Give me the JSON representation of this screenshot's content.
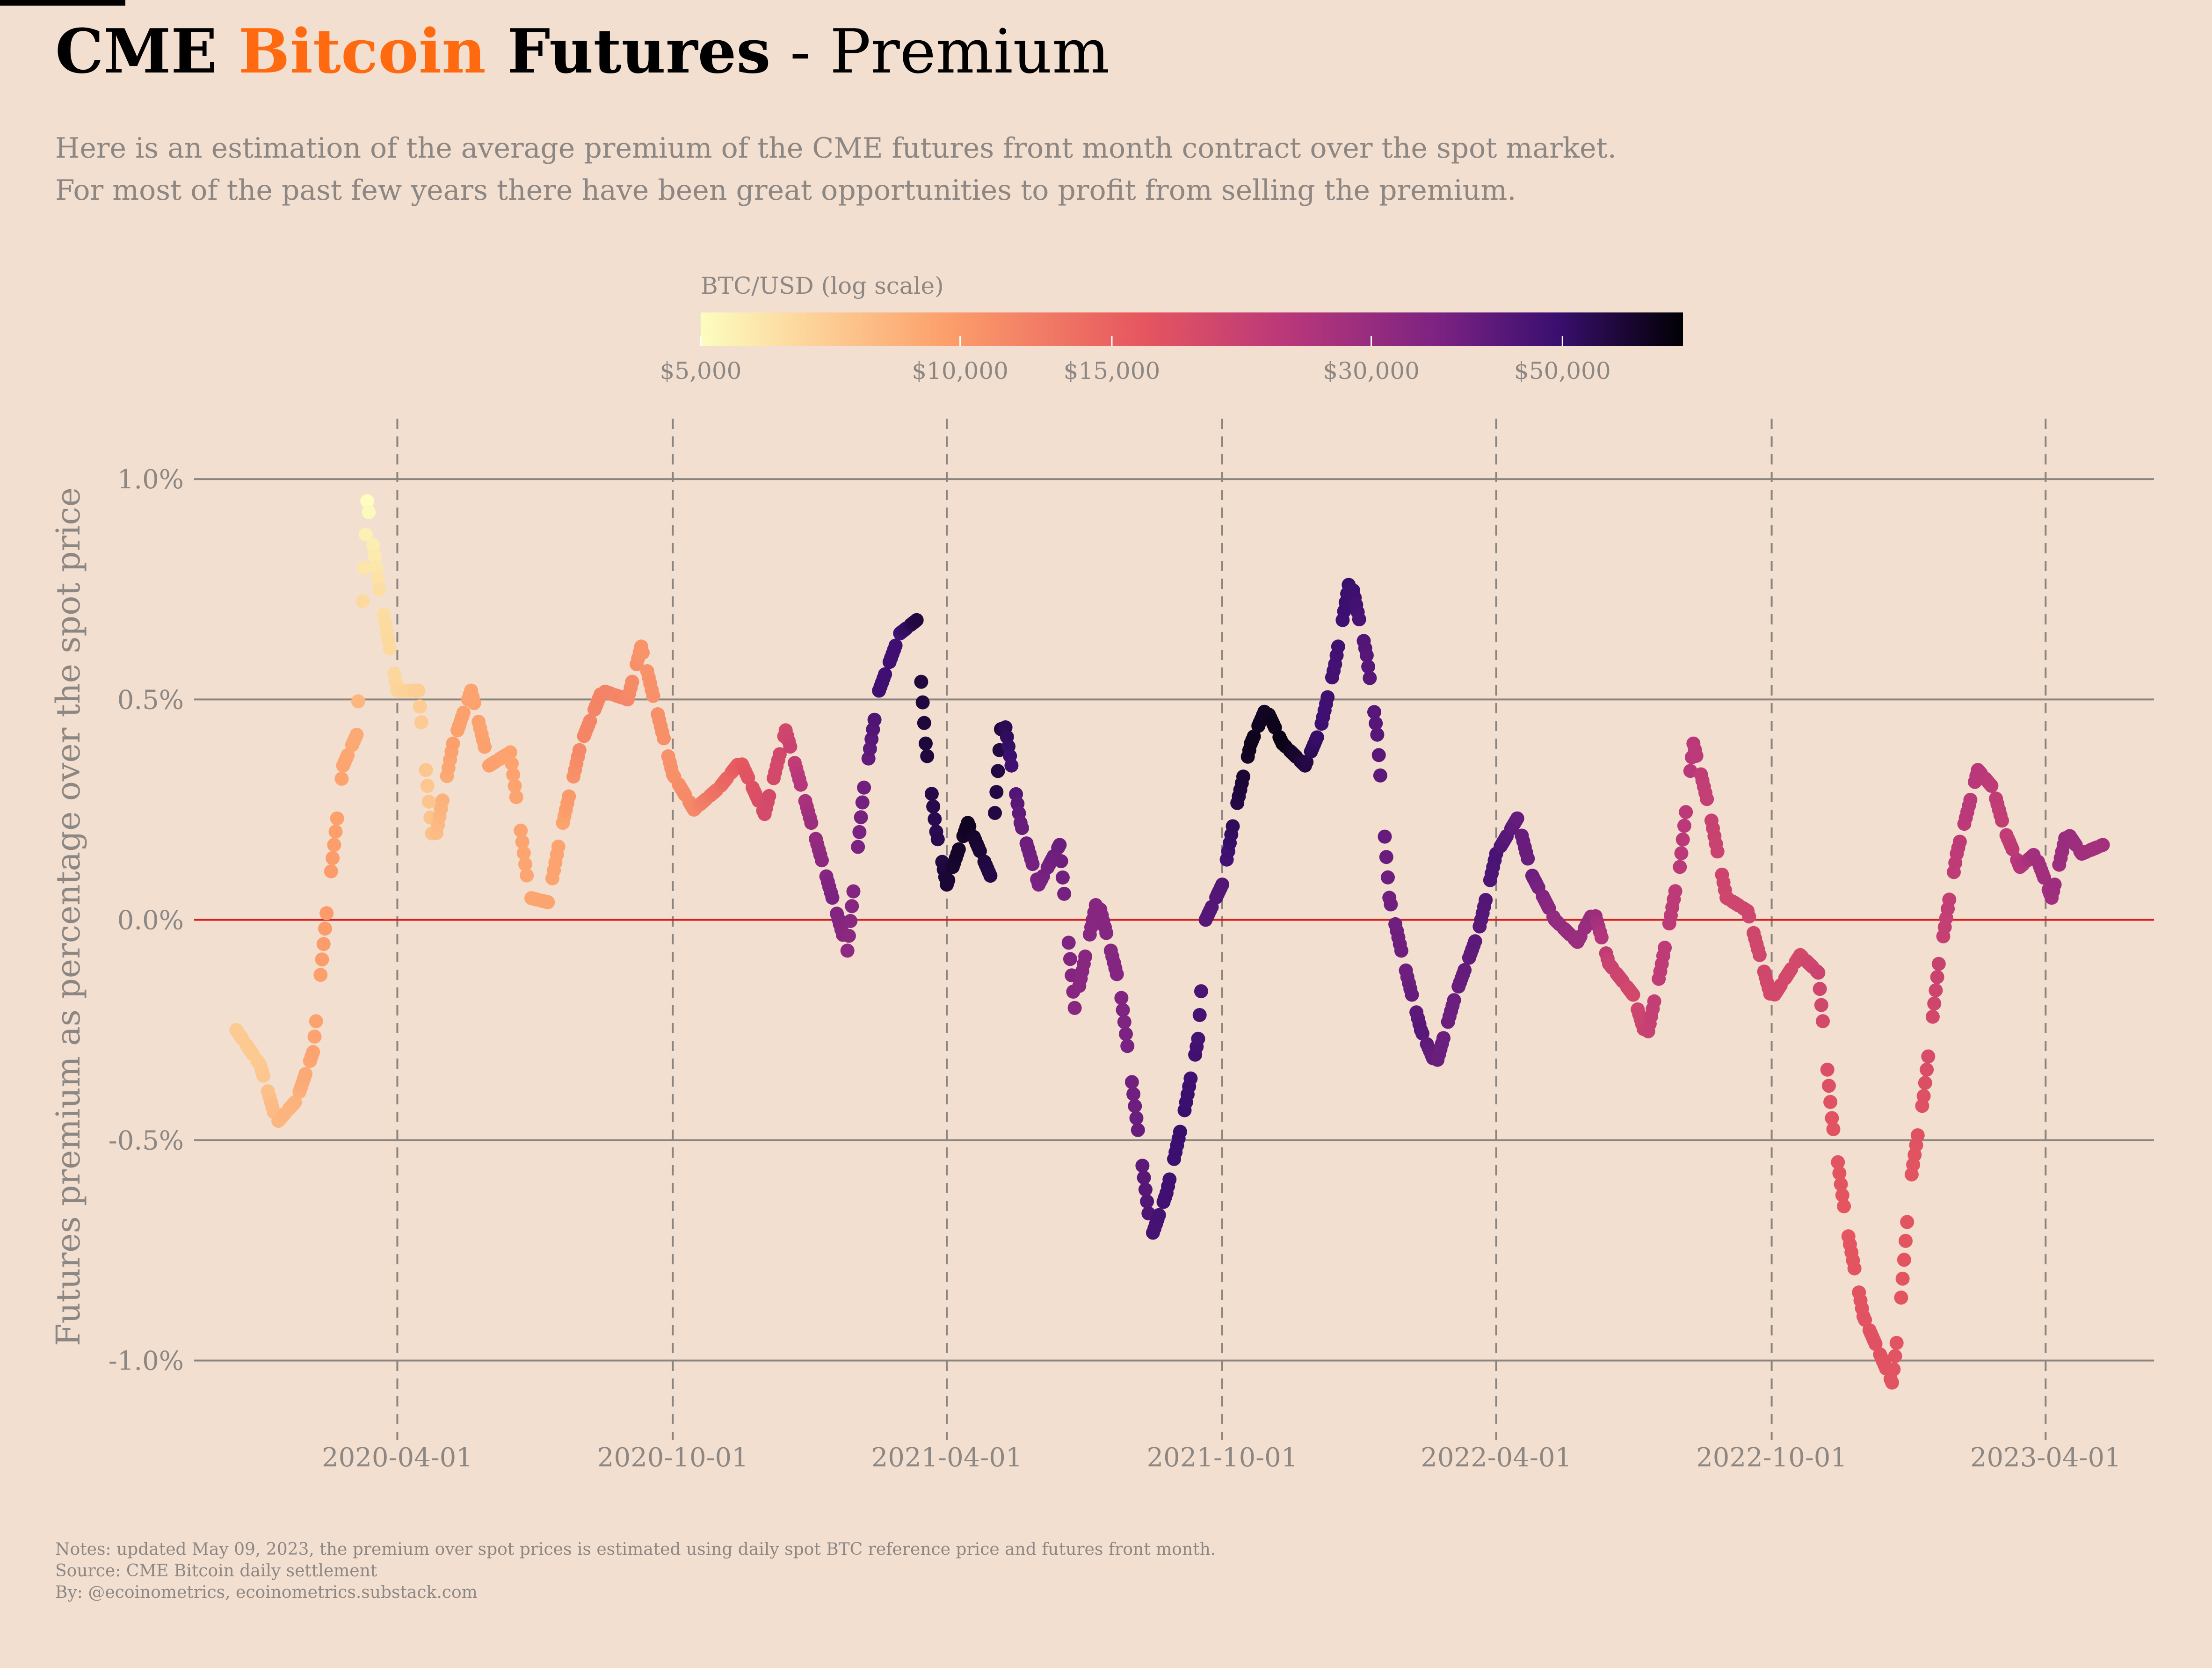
{
  "title": {
    "part1": "CME ",
    "accent": "Bitcoin",
    "part2": " Futures",
    "part3": " - Premium",
    "accent_color": "#ff6a10"
  },
  "subtitle": {
    "line1": "Here is an estimation of the average premium of the CME futures front month contract over the spot market.",
    "line2": "For most of the past few years there have been great opportunities to profit from selling the premium."
  },
  "notes": {
    "line1": "Notes: updated May 09, 2023, the premium over spot prices is estimated using daily spot BTC reference price and futures front month.",
    "line2": "Source: CME Bitcoin daily settlement",
    "line3": "By: @ecoinometrics, ecoinometrics.substack.com"
  },
  "chart_data": {
    "type": "scatter",
    "ylabel": "Futures premium as percentage over the spot price",
    "xlabel": "",
    "y_ticks": [
      "1.0%",
      "0.5%",
      "0.0%",
      "-0.5%",
      "-1.0%"
    ],
    "y_tick_values": [
      1.0,
      0.5,
      0.0,
      -0.5,
      -1.0
    ],
    "ylim": [
      -1.15,
      1.1
    ],
    "x_ticks": [
      "2020-04-01",
      "2020-10-01",
      "2021-04-01",
      "2021-10-01",
      "2022-04-01",
      "2022-10-01",
      "2023-04-01"
    ],
    "xlim": [
      "2019-11-18",
      "2023-06-12"
    ],
    "zero_line_color": "#d62020",
    "grid": "horizontal solid gridlines and vertical dashed lines at x ticks",
    "colorbar": {
      "title": "BTC/USD (log scale)",
      "tick_labels": [
        "$5,000",
        "$10,000",
        "$15,000",
        "$30,000",
        "$50,000"
      ],
      "tick_values": [
        5000,
        10000,
        15000,
        30000,
        50000
      ],
      "range": [
        5000,
        69000
      ],
      "colormap": "magma",
      "placement": "top-center"
    },
    "anchors": [
      {
        "date": "2019-12-16",
        "premium": -0.25,
        "price": 7100
      },
      {
        "date": "2020-01-01",
        "premium": -0.33,
        "price": 7200
      },
      {
        "date": "2020-01-12",
        "premium": -0.46,
        "price": 8100
      },
      {
        "date": "2020-01-25",
        "premium": -0.41,
        "price": 8500
      },
      {
        "date": "2020-02-05",
        "premium": -0.3,
        "price": 9300
      },
      {
        "date": "2020-02-15",
        "premium": 0.05,
        "price": 10000
      },
      {
        "date": "2020-02-25",
        "premium": 0.35,
        "price": 9300
      },
      {
        "date": "2020-03-05",
        "premium": 0.42,
        "price": 8900
      },
      {
        "date": "2020-03-12",
        "premium": 0.95,
        "price": 5000
      },
      {
        "date": "2020-03-20",
        "premium": 0.75,
        "price": 6200
      },
      {
        "date": "2020-04-01",
        "premium": 0.52,
        "price": 6600
      },
      {
        "date": "2020-04-15",
        "premium": 0.52,
        "price": 7000
      },
      {
        "date": "2020-04-25",
        "premium": 0.16,
        "price": 7600
      },
      {
        "date": "2020-05-08",
        "premium": 0.4,
        "price": 9600
      },
      {
        "date": "2020-05-20",
        "premium": 0.52,
        "price": 9400
      },
      {
        "date": "2020-06-01",
        "premium": 0.35,
        "price": 9500
      },
      {
        "date": "2020-06-15",
        "premium": 0.38,
        "price": 9400
      },
      {
        "date": "2020-06-28",
        "premium": 0.05,
        "price": 9200
      },
      {
        "date": "2020-07-10",
        "premium": 0.04,
        "price": 9300
      },
      {
        "date": "2020-07-20",
        "premium": 0.22,
        "price": 9400
      },
      {
        "date": "2020-08-01",
        "premium": 0.4,
        "price": 11500
      },
      {
        "date": "2020-08-15",
        "premium": 0.52,
        "price": 11800
      },
      {
        "date": "2020-09-01",
        "premium": 0.5,
        "price": 11500
      },
      {
        "date": "2020-09-10",
        "premium": 0.62,
        "price": 10400
      },
      {
        "date": "2020-09-20",
        "premium": 0.48,
        "price": 10800
      },
      {
        "date": "2020-10-01",
        "premium": 0.33,
        "price": 10700
      },
      {
        "date": "2020-10-15",
        "premium": 0.25,
        "price": 11400
      },
      {
        "date": "2020-11-01",
        "premium": 0.3,
        "price": 13700
      },
      {
        "date": "2020-11-15",
        "premium": 0.36,
        "price": 16000
      },
      {
        "date": "2020-12-01",
        "premium": 0.24,
        "price": 19000
      },
      {
        "date": "2020-12-15",
        "premium": 0.43,
        "price": 19500
      },
      {
        "date": "2021-01-01",
        "premium": 0.22,
        "price": 29000
      },
      {
        "date": "2021-01-15",
        "premium": 0.05,
        "price": 36000
      },
      {
        "date": "2021-01-25",
        "premium": -0.07,
        "price": 32000
      },
      {
        "date": "2021-02-05",
        "premium": 0.3,
        "price": 38000
      },
      {
        "date": "2021-02-15",
        "premium": 0.52,
        "price": 48000
      },
      {
        "date": "2021-03-01",
        "premium": 0.65,
        "price": 48000
      },
      {
        "date": "2021-03-12",
        "premium": 0.68,
        "price": 57000
      },
      {
        "date": "2021-03-18",
        "premium": 0.4,
        "price": 58000
      },
      {
        "date": "2021-03-25",
        "premium": 0.2,
        "price": 54000
      },
      {
        "date": "2021-04-01",
        "premium": 0.08,
        "price": 59000
      },
      {
        "date": "2021-04-15",
        "premium": 0.22,
        "price": 63000
      },
      {
        "date": "2021-04-30",
        "premium": 0.1,
        "price": 56000
      },
      {
        "date": "2021-05-08",
        "premium": 0.48,
        "price": 57000
      },
      {
        "date": "2021-05-20",
        "premium": 0.22,
        "price": 40000
      },
      {
        "date": "2021-06-01",
        "premium": 0.08,
        "price": 36000
      },
      {
        "date": "2021-06-15",
        "premium": 0.17,
        "price": 39000
      },
      {
        "date": "2021-06-25",
        "premium": -0.2,
        "price": 33000
      },
      {
        "date": "2021-07-10",
        "premium": 0.05,
        "price": 33500
      },
      {
        "date": "2021-07-25",
        "premium": -0.15,
        "price": 34000
      },
      {
        "date": "2021-08-05",
        "premium": -0.45,
        "price": 39000
      },
      {
        "date": "2021-08-15",
        "premium": -0.72,
        "price": 46000
      },
      {
        "date": "2021-08-25",
        "premium": -0.62,
        "price": 48000
      },
      {
        "date": "2021-09-05",
        "premium": -0.45,
        "price": 50000
      },
      {
        "date": "2021-09-15",
        "premium": -0.27,
        "price": 47000
      },
      {
        "date": "2021-09-20",
        "premium": 0.0,
        "price": 43000
      },
      {
        "date": "2021-10-01",
        "premium": 0.08,
        "price": 44000
      },
      {
        "date": "2021-10-10",
        "premium": 0.25,
        "price": 55000
      },
      {
        "date": "2021-10-20",
        "premium": 0.4,
        "price": 64000
      },
      {
        "date": "2021-10-30",
        "premium": 0.48,
        "price": 62000
      },
      {
        "date": "2021-11-10",
        "premium": 0.4,
        "price": 66000
      },
      {
        "date": "2021-11-25",
        "premium": 0.35,
        "price": 57000
      },
      {
        "date": "2021-12-05",
        "premium": 0.43,
        "price": 49000
      },
      {
        "date": "2021-12-15",
        "premium": 0.58,
        "price": 47000
      },
      {
        "date": "2021-12-25",
        "premium": 0.78,
        "price": 50000
      },
      {
        "date": "2022-01-05",
        "premium": 0.6,
        "price": 43000
      },
      {
        "date": "2022-01-12",
        "premium": 0.42,
        "price": 43000
      },
      {
        "date": "2022-01-20",
        "premium": 0.05,
        "price": 38000
      },
      {
        "date": "2022-02-01",
        "premium": -0.13,
        "price": 38500
      },
      {
        "date": "2022-02-10",
        "premium": -0.25,
        "price": 43000
      },
      {
        "date": "2022-02-20",
        "premium": -0.33,
        "price": 39000
      },
      {
        "date": "2022-03-05",
        "premium": -0.17,
        "price": 39000
      },
      {
        "date": "2022-03-20",
        "premium": -0.03,
        "price": 42000
      },
      {
        "date": "2022-04-01",
        "premium": 0.15,
        "price": 46000
      },
      {
        "date": "2022-04-15",
        "premium": 0.23,
        "price": 40000
      },
      {
        "date": "2022-04-25",
        "premium": 0.1,
        "price": 39000
      },
      {
        "date": "2022-05-10",
        "premium": 0.0,
        "price": 31000
      },
      {
        "date": "2022-05-25",
        "premium": -0.05,
        "price": 29500
      },
      {
        "date": "2022-06-05",
        "premium": 0.02,
        "price": 30000
      },
      {
        "date": "2022-06-15",
        "premium": -0.1,
        "price": 21000
      },
      {
        "date": "2022-07-01",
        "premium": -0.17,
        "price": 19500
      },
      {
        "date": "2022-07-10",
        "premium": -0.27,
        "price": 21000
      },
      {
        "date": "2022-07-20",
        "premium": -0.1,
        "price": 23000
      },
      {
        "date": "2022-08-01",
        "premium": 0.12,
        "price": 23500
      },
      {
        "date": "2022-08-10",
        "premium": 0.4,
        "price": 23800
      },
      {
        "date": "2022-08-20",
        "premium": 0.26,
        "price": 21500
      },
      {
        "date": "2022-09-01",
        "premium": 0.05,
        "price": 20000
      },
      {
        "date": "2022-09-15",
        "premium": 0.02,
        "price": 20000
      },
      {
        "date": "2022-10-01",
        "premium": -0.18,
        "price": 19500
      },
      {
        "date": "2022-10-20",
        "premium": -0.08,
        "price": 19200
      },
      {
        "date": "2022-11-01",
        "premium": -0.12,
        "price": 20500
      },
      {
        "date": "2022-11-10",
        "premium": -0.45,
        "price": 17000
      },
      {
        "date": "2022-11-20",
        "premium": -0.7,
        "price": 16500
      },
      {
        "date": "2022-12-01",
        "premium": -0.9,
        "price": 17000
      },
      {
        "date": "2022-12-10",
        "premium": -0.97,
        "price": 17200
      },
      {
        "date": "2022-12-20",
        "premium": -1.05,
        "price": 16800
      },
      {
        "date": "2022-12-25",
        "premium": -0.9,
        "price": 16800
      },
      {
        "date": "2023-01-01",
        "premium": -0.6,
        "price": 16600
      },
      {
        "date": "2023-01-10",
        "premium": -0.4,
        "price": 17500
      },
      {
        "date": "2023-01-20",
        "premium": -0.1,
        "price": 21000
      },
      {
        "date": "2023-02-01",
        "premium": 0.15,
        "price": 23000
      },
      {
        "date": "2023-02-15",
        "premium": 0.34,
        "price": 24000
      },
      {
        "date": "2023-02-25",
        "premium": 0.3,
        "price": 23000
      },
      {
        "date": "2023-03-05",
        "premium": 0.2,
        "price": 22000
      },
      {
        "date": "2023-03-15",
        "premium": 0.12,
        "price": 24500
      },
      {
        "date": "2023-03-25",
        "premium": 0.15,
        "price": 28000
      },
      {
        "date": "2023-04-05",
        "premium": 0.05,
        "price": 28200
      },
      {
        "date": "2023-04-15",
        "premium": 0.2,
        "price": 30000
      },
      {
        "date": "2023-04-25",
        "premium": 0.15,
        "price": 28500
      },
      {
        "date": "2023-05-09",
        "premium": 0.17,
        "price": 27700
      }
    ]
  }
}
